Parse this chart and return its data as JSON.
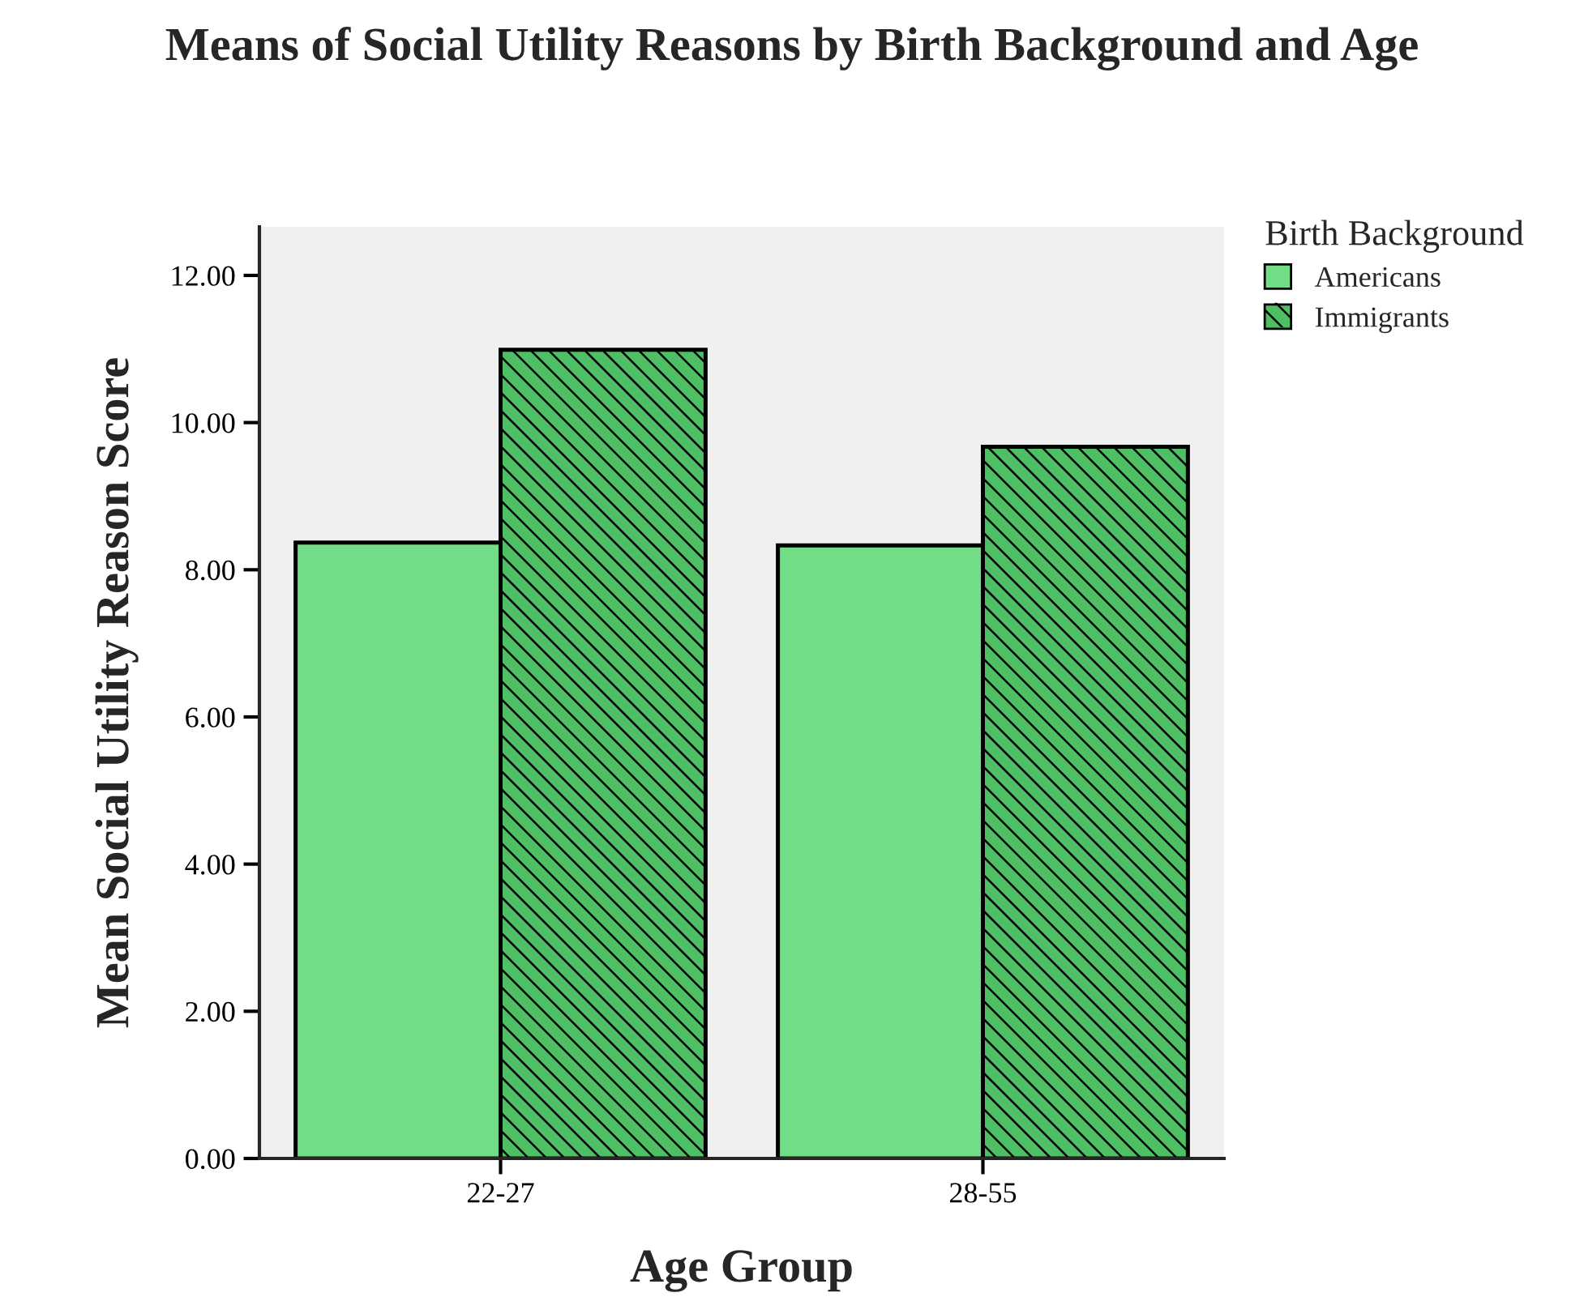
{
  "chart_data": {
    "type": "bar",
    "title": "Means of Social Utility Reasons by Birth Background and Age",
    "xlabel": "Age Group",
    "ylabel": "Mean Social Utility Reason Score",
    "legend_title": "Birth Background",
    "categories": [
      "22-27",
      "28-55"
    ],
    "series": [
      {
        "name": "Americans",
        "color": "#72dd86",
        "values": [
          8.37,
          8.33
        ]
      },
      {
        "name": "Immigrants",
        "color": "#4fbf65",
        "values": [
          10.99,
          9.67
        ]
      }
    ],
    "ylim": [
      0,
      12.66
    ],
    "yticks": [
      {
        "value": 0,
        "label": "0.00"
      },
      {
        "value": 2,
        "label": "2.00"
      },
      {
        "value": 4,
        "label": "4.00"
      },
      {
        "value": 6,
        "label": "6.00"
      },
      {
        "value": 8,
        "label": "8.00"
      },
      {
        "value": 10,
        "label": "10.00"
      },
      {
        "value": 12,
        "label": "12.00"
      }
    ],
    "grid": false,
    "legend": "top right"
  }
}
